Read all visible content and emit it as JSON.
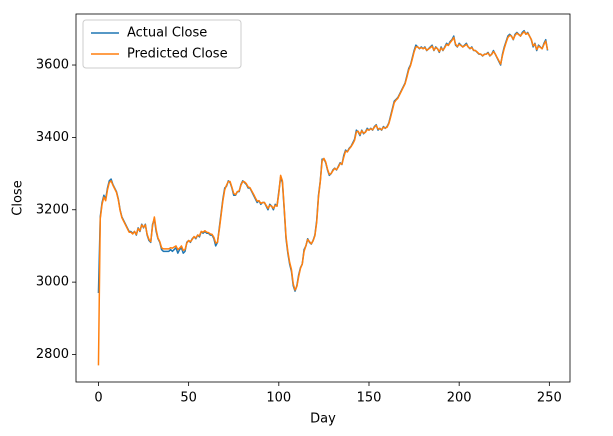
{
  "chart_data": {
    "type": "line",
    "xlabel": "Day",
    "ylabel": "Close",
    "x": [
      0,
      1,
      2,
      3,
      4,
      5,
      6,
      7,
      8,
      9,
      10,
      11,
      12,
      13,
      14,
      15,
      16,
      17,
      18,
      19,
      20,
      21,
      22,
      23,
      24,
      25,
      26,
      27,
      28,
      29,
      30,
      31,
      32,
      33,
      34,
      35,
      36,
      37,
      38,
      39,
      40,
      41,
      42,
      43,
      44,
      45,
      46,
      47,
      48,
      49,
      50,
      51,
      52,
      53,
      54,
      55,
      56,
      57,
      58,
      59,
      60,
      61,
      62,
      63,
      64,
      65,
      66,
      67,
      68,
      69,
      70,
      71,
      72,
      73,
      74,
      75,
      76,
      77,
      78,
      79,
      80,
      81,
      82,
      83,
      84,
      85,
      86,
      87,
      88,
      89,
      90,
      91,
      92,
      93,
      94,
      95,
      96,
      97,
      98,
      99,
      100,
      101,
      102,
      103,
      104,
      105,
      106,
      107,
      108,
      109,
      110,
      111,
      112,
      113,
      114,
      115,
      116,
      117,
      118,
      119,
      120,
      121,
      122,
      123,
      124,
      125,
      126,
      127,
      128,
      129,
      130,
      131,
      132,
      133,
      134,
      135,
      136,
      137,
      138,
      139,
      140,
      141,
      142,
      143,
      144,
      145,
      146,
      147,
      148,
      149,
      150,
      151,
      152,
      153,
      154,
      155,
      156,
      157,
      158,
      159,
      160,
      161,
      162,
      163,
      164,
      165,
      166,
      167,
      168,
      169,
      170,
      171,
      172,
      173,
      174,
      175,
      176,
      177,
      178,
      179,
      180,
      181,
      182,
      183,
      184,
      185,
      186,
      187,
      188,
      189,
      190,
      191,
      192,
      193,
      194,
      195,
      196,
      197,
      198,
      199,
      200,
      201,
      202,
      203,
      204,
      205,
      206,
      207,
      208,
      209,
      210,
      211,
      212,
      213,
      214,
      215,
      216,
      217,
      218,
      219,
      220,
      221,
      222,
      223,
      224,
      225,
      226,
      227,
      228,
      229,
      230,
      231,
      232,
      233,
      234,
      235,
      236,
      237,
      238,
      239,
      240,
      241,
      242,
      243,
      244,
      245,
      246,
      247,
      248,
      249
    ],
    "series": [
      {
        "name": "Actual Close",
        "color": "#1f77b4",
        "values": [
          2970,
          3180,
          3220,
          3240,
          3230,
          3260,
          3280,
          3285,
          3270,
          3260,
          3250,
          3230,
          3200,
          3180,
          3170,
          3160,
          3150,
          3140,
          3140,
          3135,
          3140,
          3130,
          3150,
          3140,
          3160,
          3150,
          3160,
          3130,
          3115,
          3110,
          3160,
          3175,
          3140,
          3120,
          3110,
          3090,
          3085,
          3085,
          3085,
          3085,
          3090,
          3085,
          3090,
          3095,
          3080,
          3090,
          3095,
          3080,
          3085,
          3110,
          3115,
          3110,
          3120,
          3125,
          3120,
          3130,
          3125,
          3140,
          3135,
          3140,
          3135,
          3135,
          3130,
          3130,
          3120,
          3100,
          3110,
          3150,
          3190,
          3230,
          3260,
          3265,
          3280,
          3275,
          3260,
          3240,
          3240,
          3250,
          3250,
          3270,
          3280,
          3275,
          3270,
          3260,
          3260,
          3250,
          3240,
          3230,
          3220,
          3225,
          3215,
          3220,
          3220,
          3210,
          3200,
          3215,
          3210,
          3200,
          3215,
          3210,
          3250,
          3290,
          3275,
          3200,
          3120,
          3080,
          3050,
          3030,
          2990,
          2975,
          2990,
          3020,
          3040,
          3050,
          3090,
          3100,
          3120,
          3110,
          3105,
          3115,
          3130,
          3170,
          3240,
          3280,
          3340,
          3340,
          3330,
          3310,
          3295,
          3300,
          3310,
          3315,
          3310,
          3320,
          3330,
          3325,
          3350,
          3365,
          3360,
          3370,
          3375,
          3385,
          3395,
          3420,
          3415,
          3405,
          3420,
          3410,
          3415,
          3425,
          3420,
          3425,
          3420,
          3430,
          3435,
          3420,
          3425,
          3420,
          3430,
          3425,
          3430,
          3440,
          3460,
          3480,
          3500,
          3505,
          3510,
          3520,
          3530,
          3540,
          3550,
          3570,
          3590,
          3600,
          3620,
          3640,
          3655,
          3650,
          3645,
          3650,
          3645,
          3650,
          3640,
          3645,
          3650,
          3655,
          3640,
          3650,
          3645,
          3635,
          3650,
          3640,
          3650,
          3660,
          3655,
          3665,
          3670,
          3680,
          3655,
          3650,
          3660,
          3655,
          3650,
          3655,
          3660,
          3650,
          3645,
          3650,
          3640,
          3640,
          3635,
          3630,
          3630,
          3625,
          3630,
          3630,
          3635,
          3625,
          3630,
          3640,
          3630,
          3620,
          3610,
          3600,
          3630,
          3650,
          3665,
          3680,
          3685,
          3680,
          3670,
          3685,
          3690,
          3685,
          3680,
          3690,
          3695,
          3685,
          3690,
          3680,
          3670,
          3650,
          3660,
          3640,
          3655,
          3650,
          3645,
          3660,
          3670,
          3640
        ]
      },
      {
        "name": "Predicted Close",
        "color": "#ff7f0e",
        "values": [
          2770,
          3175,
          3215,
          3235,
          3225,
          3255,
          3275,
          3280,
          3268,
          3258,
          3248,
          3228,
          3198,
          3178,
          3168,
          3158,
          3148,
          3138,
          3138,
          3133,
          3140,
          3132,
          3148,
          3142,
          3158,
          3152,
          3158,
          3132,
          3118,
          3112,
          3155,
          3180,
          3145,
          3122,
          3112,
          3095,
          3092,
          3092,
          3092,
          3092,
          3095,
          3094,
          3097,
          3100,
          3090,
          3094,
          3100,
          3088,
          3090,
          3108,
          3115,
          3112,
          3118,
          3126,
          3122,
          3130,
          3128,
          3140,
          3138,
          3142,
          3138,
          3137,
          3133,
          3132,
          3124,
          3108,
          3110,
          3145,
          3185,
          3225,
          3255,
          3268,
          3278,
          3278,
          3262,
          3245,
          3242,
          3250,
          3252,
          3268,
          3278,
          3277,
          3272,
          3263,
          3261,
          3252,
          3243,
          3233,
          3224,
          3225,
          3218,
          3220,
          3220,
          3212,
          3204,
          3212,
          3210,
          3204,
          3212,
          3210,
          3245,
          3295,
          3280,
          3205,
          3125,
          3085,
          3055,
          3035,
          2995,
          2978,
          2988,
          3015,
          3038,
          3050,
          3085,
          3100,
          3118,
          3112,
          3106,
          3114,
          3128,
          3165,
          3235,
          3278,
          3335,
          3342,
          3332,
          3312,
          3298,
          3300,
          3308,
          3314,
          3311,
          3318,
          3328,
          3326,
          3345,
          3362,
          3360,
          3368,
          3374,
          3382,
          3392,
          3415,
          3417,
          3408,
          3418,
          3412,
          3414,
          3422,
          3420,
          3424,
          3421,
          3428,
          3433,
          3423,
          3424,
          3421,
          3428,
          3426,
          3428,
          3438,
          3456,
          3476,
          3496,
          3503,
          3508,
          3518,
          3528,
          3538,
          3548,
          3566,
          3586,
          3598,
          3616,
          3636,
          3650,
          3650,
          3646,
          3648,
          3645,
          3648,
          3641,
          3644,
          3648,
          3652,
          3641,
          3648,
          3645,
          3637,
          3647,
          3641,
          3648,
          3657,
          3654,
          3662,
          3668,
          3676,
          3658,
          3651,
          3657,
          3654,
          3650,
          3653,
          3657,
          3650,
          3646,
          3648,
          3641,
          3640,
          3636,
          3631,
          3630,
          3626,
          3629,
          3630,
          3633,
          3626,
          3629,
          3637,
          3631,
          3621,
          3612,
          3603,
          3626,
          3646,
          3662,
          3676,
          3682,
          3680,
          3671,
          3682,
          3688,
          3684,
          3680,
          3687,
          3692,
          3685,
          3688,
          3680,
          3671,
          3653,
          3658,
          3643,
          3652,
          3649,
          3645,
          3657,
          3666,
          3642
        ]
      }
    ],
    "xlim": [
      -12.45,
      261.45
    ],
    "xticks": [
      0,
      50,
      100,
      150,
      200,
      250
    ],
    "ylim": [
      2724,
      3741
    ],
    "yticks": [
      2800,
      3000,
      3200,
      3400,
      3600
    ],
    "legend": "upper left"
  }
}
